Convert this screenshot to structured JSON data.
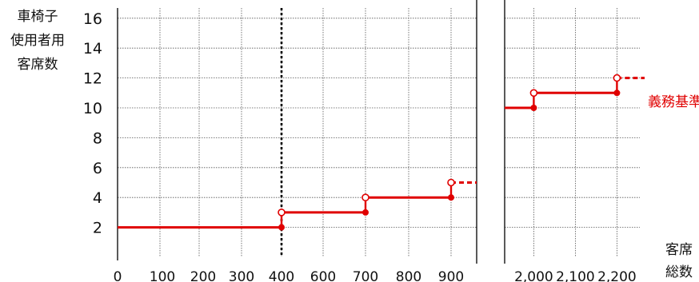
{
  "chart_data": {
    "type": "line",
    "step": true,
    "ylabel_lines": [
      "車椅子",
      "使用者用",
      "客席数"
    ],
    "xlabel_lines": [
      "客席",
      "総数"
    ],
    "ylim": [
      0,
      16
    ],
    "yticks": [
      2,
      4,
      6,
      8,
      10,
      12,
      14,
      16
    ],
    "panels": [
      {
        "name": "left",
        "xlim": [
          0,
          960
        ],
        "xticks": [
          0,
          100,
          200,
          300,
          400,
          600,
          700,
          800,
          900
        ],
        "xtick_labels": [
          "0",
          "100",
          "200",
          "300",
          "400",
          "600",
          "700",
          "800",
          "900"
        ]
      },
      {
        "name": "right",
        "xlim": [
          1930,
          2300
        ],
        "xticks": [
          2000,
          2100,
          2200
        ],
        "xtick_labels": [
          "2,000",
          "2,100",
          "2,200"
        ]
      }
    ],
    "reference_line_x": 400,
    "series": [
      {
        "name": "義務基準",
        "color": "#e00000",
        "steps_left": [
          {
            "x0": 0,
            "x1": 400,
            "y": 2
          },
          {
            "x0": 400,
            "x1": 700,
            "y": 3
          },
          {
            "x0": 700,
            "x1": 900,
            "y": 4
          }
        ],
        "open_points_left": [
          {
            "x": 400,
            "y": 3
          },
          {
            "x": 700,
            "y": 4
          },
          {
            "x": 900,
            "y": 5
          }
        ],
        "closed_points_left": [
          {
            "x": 400,
            "y": 2
          },
          {
            "x": 700,
            "y": 3
          },
          {
            "x": 900,
            "y": 4
          }
        ],
        "dashed_left": {
          "x0": 900,
          "x1": 960,
          "y": 5
        },
        "steps_right": [
          {
            "x0": 1930,
            "x1": 2000,
            "y": 10
          },
          {
            "x0": 2000,
            "x1": 2200,
            "y": 11
          }
        ],
        "open_points_right": [
          {
            "x": 2000,
            "y": 11
          },
          {
            "x": 2200,
            "y": 12
          }
        ],
        "closed_points_right": [
          {
            "x": 2000,
            "y": 10
          },
          {
            "x": 2200,
            "y": 11
          }
        ],
        "dashed_right": {
          "x0": 2200,
          "x1": 2300,
          "y": 12
        }
      }
    ]
  }
}
